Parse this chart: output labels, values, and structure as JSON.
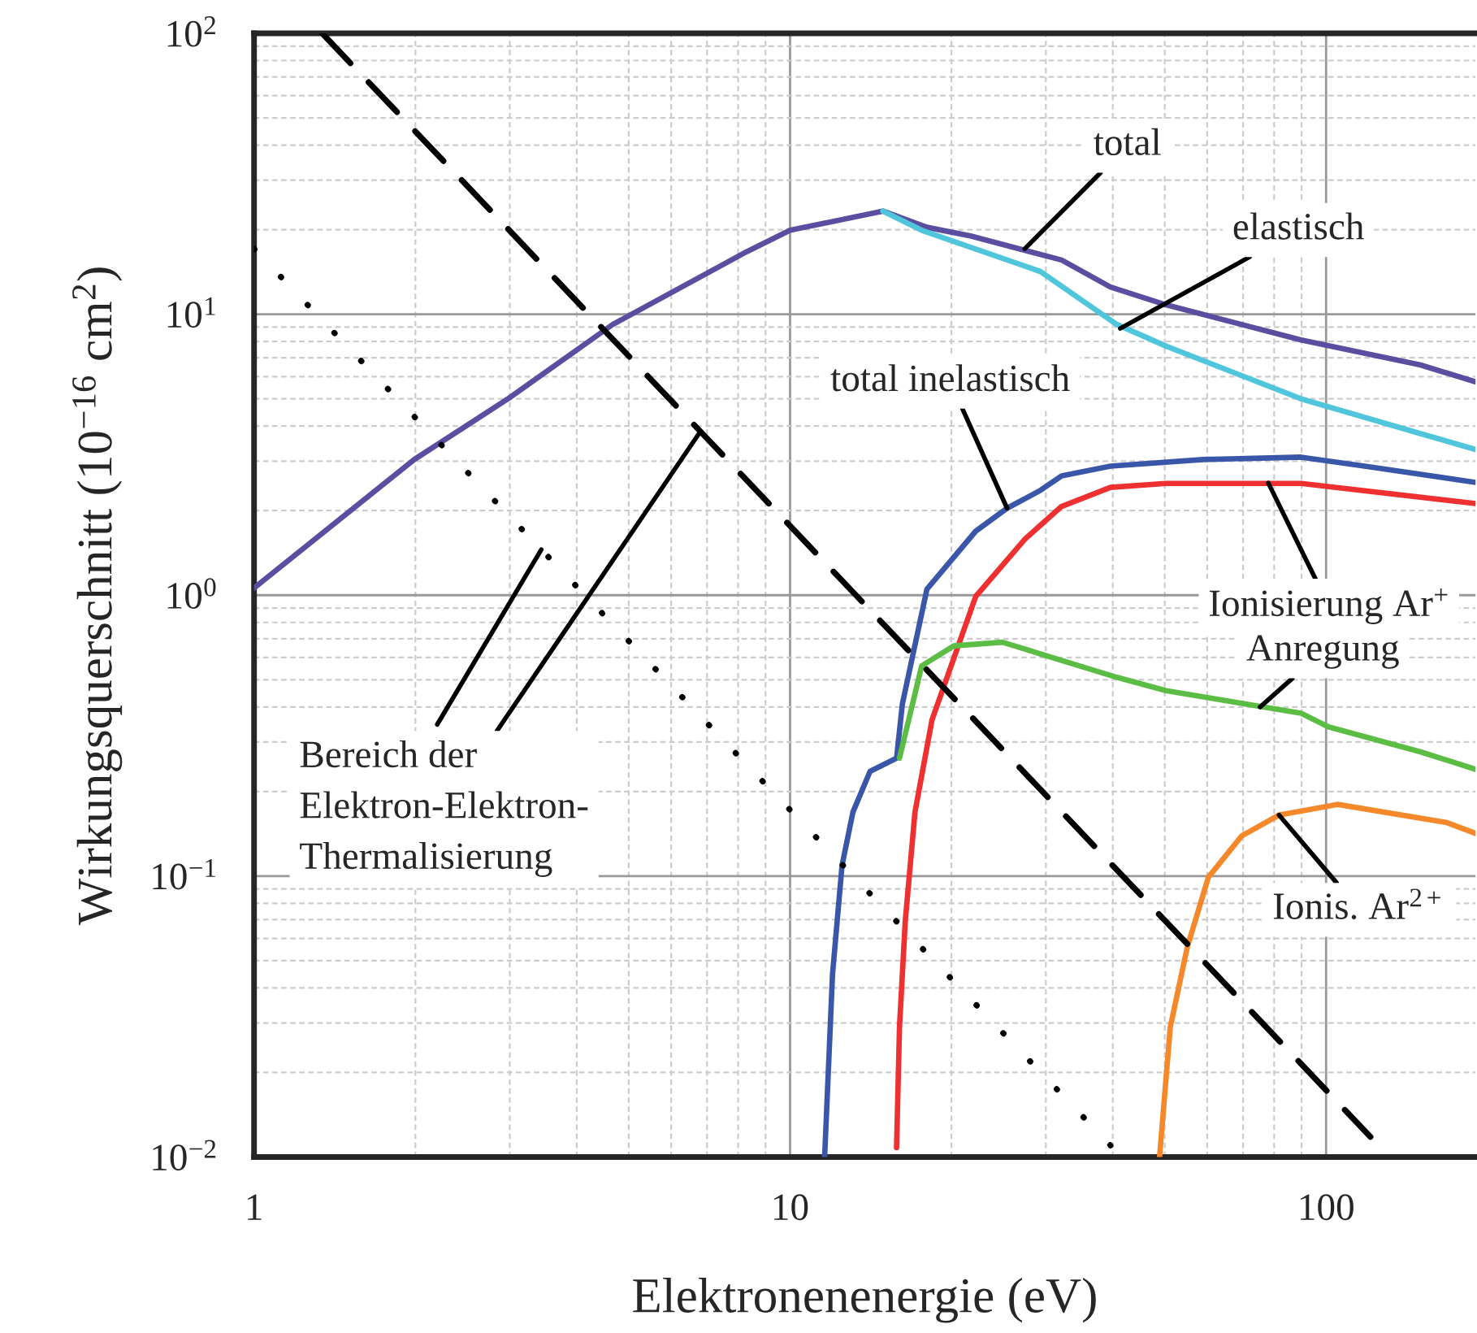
{
  "chart_data": {
    "type": "line",
    "xlabel": "Elektronenenergie (eV)",
    "ylabel": "Wirkungsquerschnitt (10$^{−16}$ cm$^{2}$)",
    "log": "xy",
    "xlim": [
      1,
      190
    ],
    "ylim": [
      0.01,
      100
    ],
    "xticks": [
      1,
      10,
      100
    ],
    "yticks": [
      {
        "value": 0.01,
        "label": "10$^{−2}$"
      },
      {
        "value": 0.1,
        "label": "10$^{−1}$"
      },
      {
        "value": 1,
        "label": "10$^{0}$"
      },
      {
        "value": 10,
        "label": "10$^{1}$"
      },
      {
        "value": 100,
        "label": "10$^{2}$"
      }
    ],
    "grid": true,
    "legend": false,
    "series": [
      {
        "color": "#5b4ea0",
        "x": [
          1,
          1.99,
          2.99,
          4.67,
          8.3,
          10,
          14.9,
          18,
          21.7,
          32.1,
          39.6,
          50.3,
          89.8,
          150,
          190
        ],
        "values": [
          1.06,
          3.04,
          5.03,
          9.2,
          16.7,
          19.9,
          23.3,
          20.4,
          19,
          15.6,
          12.5,
          10.8,
          8.1,
          6.6,
          5.75
        ]
      },
      {
        "color": "#4fc6dc",
        "x": [
          14.9,
          17.6,
          29.3,
          40.7,
          50.3,
          89.8,
          150,
          190
        ],
        "values": [
          23.3,
          19.9,
          14.2,
          9.2,
          7.7,
          5.0,
          3.76,
          3.3
        ]
      },
      {
        "color": "#3a56a8",
        "x": [
          11.6,
          12.0,
          12.5,
          13.1,
          14.1,
          15.8,
          16.2,
          18,
          22.2,
          25.4,
          29.3,
          32.1,
          39.6,
          58.9,
          89.8,
          118,
          190
        ],
        "values": [
          0.01,
          0.0447,
          0.109,
          0.169,
          0.236,
          0.263,
          0.41,
          1.05,
          1.69,
          2.04,
          2.36,
          2.66,
          2.88,
          3.04,
          3.1,
          2.88,
          2.52
        ]
      },
      {
        "color": "#ee3030",
        "x": [
          15.8,
          16.0,
          16.4,
          17.1,
          18.4,
          22.2,
          27.4,
          32.1,
          39.6,
          50.3,
          89.8,
          190
        ],
        "values": [
          0.0108,
          0.029,
          0.069,
          0.169,
          0.36,
          0.99,
          1.58,
          2.07,
          2.42,
          2.5,
          2.5,
          2.12
        ]
      },
      {
        "color": "#5cbd44",
        "x": [
          16.0,
          17.6,
          20.2,
          24.9,
          40.7,
          50.3,
          89.8,
          101,
          150,
          190
        ],
        "values": [
          0.263,
          0.56,
          0.66,
          0.68,
          0.51,
          0.457,
          0.38,
          0.34,
          0.277,
          0.24
        ]
      },
      {
        "color": "#f5882a",
        "x": [
          48.9,
          51.2,
          55.1,
          60.3,
          69.6,
          81.7,
          105,
          168,
          190
        ],
        "values": [
          0.01,
          0.029,
          0.056,
          0.099,
          0.139,
          0.165,
          0.18,
          0.155,
          0.142
        ]
      },
      {
        "color": "#000000",
        "line_style": "dashed",
        "x": [
          1.34,
          121
        ],
        "values": [
          100,
          0.0118
        ]
      },
      {
        "color": "#000000",
        "line_style": "dotted",
        "x": [
          1,
          39.6
        ],
        "values": [
          17.1,
          0.011
        ]
      }
    ],
    "annotations": [
      {
        "text": "total",
        "x": 27.4,
        "y": 17.1
      },
      {
        "text": "elastisch",
        "x": 41.3,
        "y": 8.9
      },
      {
        "text": "total inelastisch",
        "x": 25.4,
        "y": 2.04
      },
      {
        "text": "Ionisierung Ar$^{+}$",
        "x": 78,
        "y": 2.51
      },
      {
        "text": "Anregung",
        "x": 75.3,
        "y": 0.4
      },
      {
        "text": "Ionis. Ar$^{2+}$",
        "x": 81.7,
        "y": 0.165
      },
      {
        "text": "Bereich der\nElektron-Elektron-\nThermalisierung",
        "x": 6.76,
        "y": 3.76
      }
    ]
  }
}
